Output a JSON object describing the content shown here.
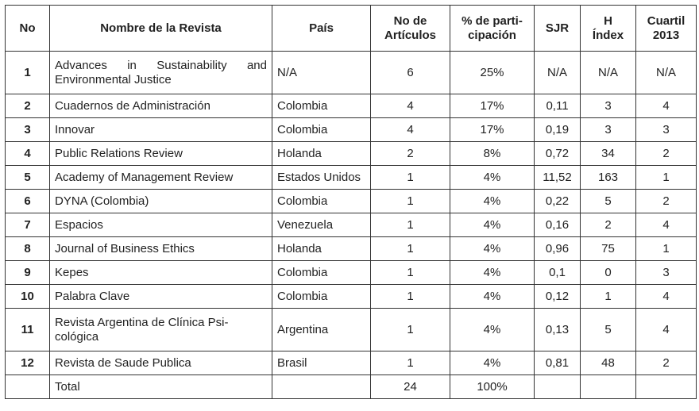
{
  "table": {
    "header": [
      "No",
      "Nombre de la Revista",
      "País",
      "No de\nArtículos",
      "% de parti-\ncipación",
      "SJR",
      "H\nÍndex",
      "Cuartil\n2013"
    ],
    "rows": [
      [
        "1",
        "Advances in Sustainability and Environmental Justice",
        "N/A",
        "6",
        "25%",
        "N/A",
        "N/A",
        "N/A"
      ],
      [
        "2",
        "Cuadernos de Administración",
        "Colombia",
        "4",
        "17%",
        "0,11",
        "3",
        "4"
      ],
      [
        "3",
        "Innovar",
        "Colombia",
        "4",
        "17%",
        "0,19",
        "3",
        "3"
      ],
      [
        "4",
        "Public Relations Review",
        "Holanda",
        "2",
        "8%",
        "0,72",
        "34",
        "2"
      ],
      [
        "5",
        "Academy of Management Review",
        "Estados Unidos",
        "1",
        "4%",
        "11,52",
        "163",
        "1"
      ],
      [
        "6",
        "DYNA (Colombia)",
        "Colombia",
        "1",
        "4%",
        "0,22",
        "5",
        "2"
      ],
      [
        "7",
        "Espacios",
        "Venezuela",
        "1",
        "4%",
        "0,16",
        "2",
        "4"
      ],
      [
        "8",
        "Journal of Business Ethics",
        "Holanda",
        "1",
        "4%",
        "0,96",
        "75",
        "1"
      ],
      [
        "9",
        "Kepes",
        "Colombia",
        "1",
        "4%",
        "0,1",
        "0",
        "3"
      ],
      [
        "10",
        "Palabra Clave",
        "Colombia",
        "1",
        "4%",
        "0,12",
        "1",
        "4"
      ],
      [
        "11",
        "Revista Argentina de Clínica Psi-\ncológica",
        "Argentina",
        "1",
        "4%",
        "0,13",
        "5",
        "4"
      ],
      [
        "12",
        "Revista de Saude Publica",
        "Brasil",
        "1",
        "4%",
        "0,81",
        "48",
        "2"
      ],
      [
        null,
        "Total",
        null,
        "24",
        "100%",
        null,
        null,
        null
      ]
    ]
  }
}
